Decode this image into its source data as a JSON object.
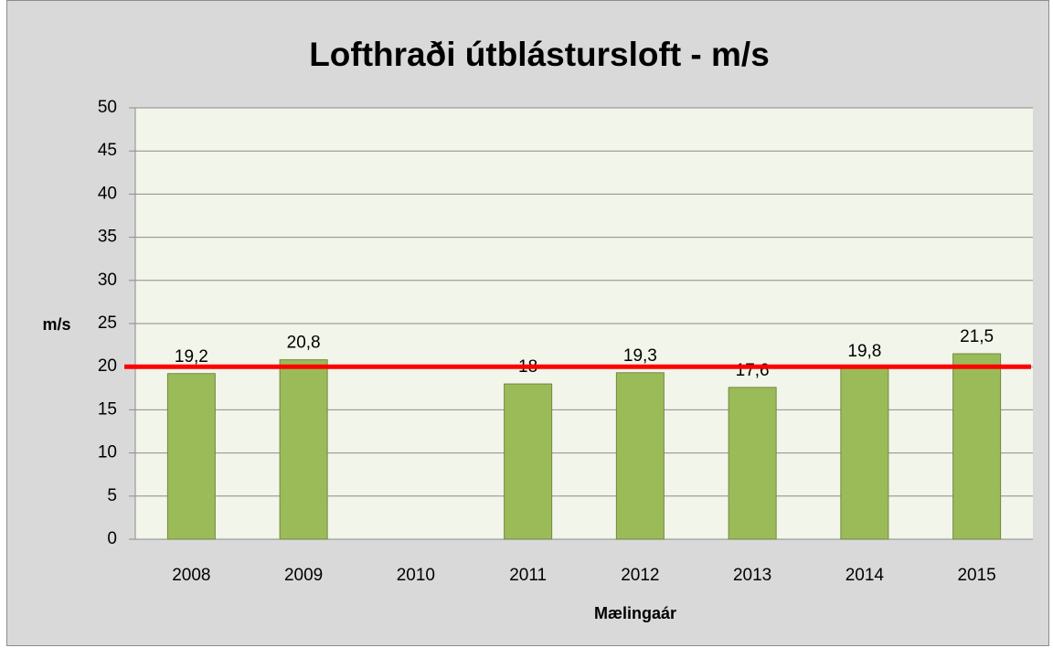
{
  "chart_data": {
    "type": "bar",
    "title": "Lofthraði útblástursloft - m/s",
    "x_label": "Mælingaár",
    "y_label": "m/s",
    "categories": [
      "2008",
      "2009",
      "2010",
      "2011",
      "2012",
      "2013",
      "2014",
      "2015"
    ],
    "values": [
      19.2,
      20.8,
      null,
      18,
      19.3,
      17.6,
      19.8,
      21.5
    ],
    "value_labels": [
      "19,2",
      "20,8",
      null,
      "18",
      "19,3",
      "17,6",
      "19,8",
      "21,5"
    ],
    "color": "#9bbb59",
    "ylim": [
      0,
      50
    ],
    "yticks": [
      0,
      5,
      10,
      15,
      20,
      25,
      30,
      35,
      40,
      45,
      50
    ],
    "grid": true,
    "reference_line": {
      "value": 20,
      "color": "#ff0000"
    }
  }
}
